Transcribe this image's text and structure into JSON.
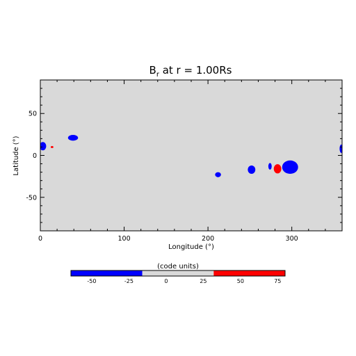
{
  "chart_data": {
    "type": "heatmap",
    "title": "B",
    "title_subscript": "r",
    "title_suffix": " at r = 1.00Rs",
    "xlabel": "Longitude (°)",
    "ylabel": "Latitude (°)",
    "xlim": [
      0,
      360
    ],
    "ylim": [
      -90,
      90
    ],
    "xticks": [
      0,
      100,
      200,
      300
    ],
    "yticks": [
      -50,
      0,
      50
    ],
    "background_value": 0,
    "colors": {
      "negative": "#0000ff",
      "neutral": "#d9d9d9",
      "positive": "#ff0000"
    },
    "features": [
      {
        "name": "blue patch (lon 3, lat 11)",
        "polarity": "negative",
        "lon": 3,
        "lat": 11,
        "dlon": 4,
        "dlat": 5
      },
      {
        "name": "blue patch (lon 39, lat 21)",
        "polarity": "negative",
        "lon": 39,
        "lat": 21,
        "dlon": 6,
        "dlat": 3.5
      },
      {
        "name": "red patch (lon 14, lat 10)",
        "polarity": "positive",
        "lon": 14,
        "lat": 10,
        "dlon": 1.6,
        "dlat": 1.2
      },
      {
        "name": "blue patch (lon 212, lat -23)",
        "polarity": "negative",
        "lon": 212,
        "lat": -23,
        "dlon": 3.5,
        "dlat": 3
      },
      {
        "name": "blue patch (lon 252, lat -17)",
        "polarity": "negative",
        "lon": 252,
        "lat": -17,
        "dlon": 4.5,
        "dlat": 5
      },
      {
        "name": "blue patch (lon 274, lat -13)",
        "polarity": "negative",
        "lon": 274,
        "lat": -13,
        "dlon": 2,
        "dlat": 4
      },
      {
        "name": "red patch (lon 283, lat -16)",
        "polarity": "positive",
        "lon": 283,
        "lat": -16,
        "dlon": 4.5,
        "dlat": 5.5
      },
      {
        "name": "blue patch (lon 298, lat -14)",
        "polarity": "negative",
        "lon": 298,
        "lat": -14,
        "dlon": 9.5,
        "dlat": 8
      },
      {
        "name": "blue patch (lon 359, lat 8)",
        "polarity": "negative",
        "lon": 359,
        "lat": 8,
        "dlon": 2,
        "dlat": 5
      }
    ],
    "colorbar": {
      "label": "(code units)",
      "range": [
        -64,
        80
      ],
      "ticks": [
        -50,
        -25,
        0,
        25,
        50,
        75
      ],
      "segments": [
        {
          "from": -64,
          "to": -16,
          "color": "#0000ff"
        },
        {
          "from": -16,
          "to": 32,
          "color": "#d9d9d9"
        },
        {
          "from": 32,
          "to": 80,
          "color": "#ff0000"
        }
      ]
    }
  }
}
